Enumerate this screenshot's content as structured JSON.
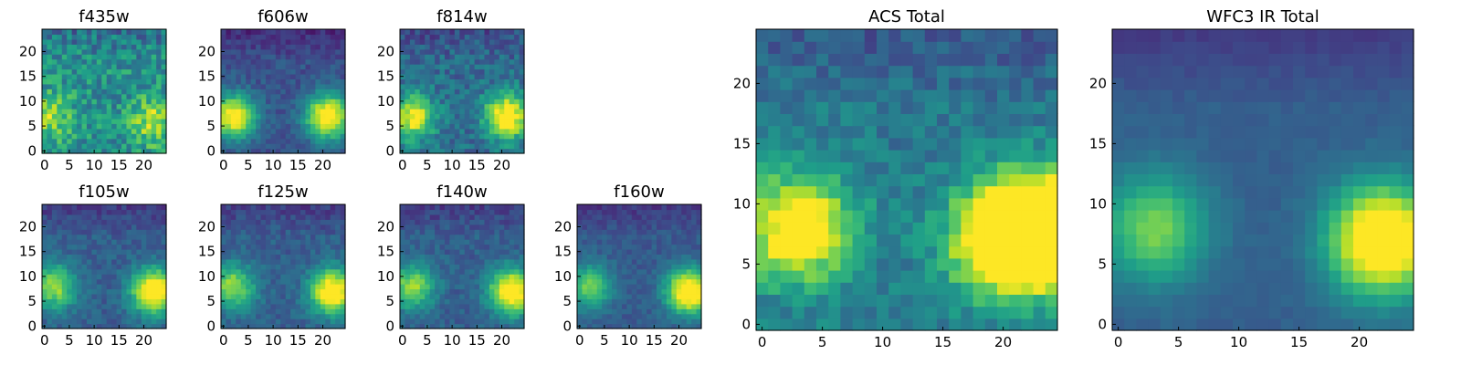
{
  "figure": {
    "description_colormap": "viridis",
    "grid_size": 25,
    "colormap_stops": [
      "#440154",
      "#482878",
      "#3e4989",
      "#31688e",
      "#26828e",
      "#1f9e89",
      "#35b779",
      "#6ece58",
      "#b5de2b",
      "#fde725"
    ]
  },
  "chart_data": [
    {
      "type": "heatmap",
      "title": "f435w",
      "xticks": [
        0,
        5,
        10,
        15,
        20
      ],
      "yticks": [
        0,
        5,
        10,
        15,
        20
      ],
      "xlim": [
        -0.5,
        24.5
      ],
      "ylim": [
        -0.5,
        24.5
      ],
      "pixel_scale": "fine",
      "sources": [
        {
          "x": 1,
          "y": 7,
          "peak": 0.35
        },
        {
          "x": 22,
          "y": 6,
          "peak": 0.4
        }
      ],
      "background": 0.5,
      "noise": 0.35,
      "notes_visible": "noisy flux map with two bright blobs at left and right near y≈6"
    },
    {
      "type": "heatmap",
      "title": "f606w",
      "xticks": [
        0,
        5,
        10,
        15,
        20
      ],
      "yticks": [
        0,
        5,
        10,
        15,
        20
      ],
      "xlim": [
        -0.5,
        24.5
      ],
      "ylim": [
        -0.5,
        24.5
      ],
      "pixel_scale": "fine",
      "sources": [
        {
          "x": 2,
          "y": 7,
          "peak": 0.8
        },
        {
          "x": 21,
          "y": 7,
          "peak": 0.85
        }
      ],
      "background": 0.25,
      "noise": 0.15
    },
    {
      "type": "heatmap",
      "title": "f814w",
      "xticks": [
        0,
        5,
        10,
        15,
        20
      ],
      "yticks": [
        0,
        5,
        10,
        15,
        20
      ],
      "xlim": [
        -0.5,
        24.5
      ],
      "ylim": [
        -0.5,
        24.5
      ],
      "pixel_scale": "fine",
      "sources": [
        {
          "x": 2,
          "y": 7,
          "peak": 0.65
        },
        {
          "x": 21,
          "y": 7,
          "peak": 0.75
        }
      ],
      "background": 0.35,
      "noise": 0.25
    },
    {
      "type": "heatmap",
      "title": "f105w",
      "xticks": [
        0,
        5,
        10,
        15,
        20
      ],
      "yticks": [
        0,
        5,
        10,
        15,
        20
      ],
      "xlim": [
        -0.5,
        24.5
      ],
      "ylim": [
        -0.5,
        24.5
      ],
      "pixel_scale": "fine",
      "sources": [
        {
          "x": 2,
          "y": 8,
          "peak": 0.55
        },
        {
          "x": 22,
          "y": 7,
          "peak": 0.85
        }
      ],
      "background": 0.3,
      "noise": 0.15
    },
    {
      "type": "heatmap",
      "title": "f125w",
      "xticks": [
        0,
        5,
        10,
        15,
        20
      ],
      "yticks": [
        0,
        5,
        10,
        15,
        20
      ],
      "xlim": [
        -0.5,
        24.5
      ],
      "ylim": [
        -0.5,
        24.5
      ],
      "pixel_scale": "fine",
      "sources": [
        {
          "x": 2,
          "y": 8,
          "peak": 0.55
        },
        {
          "x": 22,
          "y": 7,
          "peak": 0.85
        }
      ],
      "background": 0.3,
      "noise": 0.15
    },
    {
      "type": "heatmap",
      "title": "f140w",
      "xticks": [
        0,
        5,
        10,
        15,
        20
      ],
      "yticks": [
        0,
        5,
        10,
        15,
        20
      ],
      "xlim": [
        -0.5,
        24.5
      ],
      "ylim": [
        -0.5,
        24.5
      ],
      "pixel_scale": "fine",
      "sources": [
        {
          "x": 2,
          "y": 8,
          "peak": 0.55
        },
        {
          "x": 22,
          "y": 7,
          "peak": 0.85
        }
      ],
      "background": 0.3,
      "noise": 0.15
    },
    {
      "type": "heatmap",
      "title": "f160w",
      "xticks": [
        0,
        5,
        10,
        15,
        20
      ],
      "yticks": [
        0,
        5,
        10,
        15,
        20
      ],
      "xlim": [
        -0.5,
        24.5
      ],
      "ylim": [
        -0.5,
        24.5
      ],
      "pixel_scale": "fine",
      "sources": [
        {
          "x": 2,
          "y": 8,
          "peak": 0.5
        },
        {
          "x": 22,
          "y": 7,
          "peak": 0.9
        }
      ],
      "background": 0.28,
      "noise": 0.12
    },
    {
      "type": "heatmap",
      "title": "ACS Total",
      "xticks": [
        0,
        5,
        10,
        15,
        20
      ],
      "yticks": [
        0,
        5,
        10,
        15,
        20
      ],
      "xlim": [
        -0.5,
        24.5
      ],
      "ylim": [
        -0.5,
        24.5
      ],
      "pixel_scale": "coarse",
      "sources": [
        {
          "x": 3,
          "y": 8,
          "peak": 0.75
        },
        {
          "x": 20,
          "y": 7,
          "peak": 0.85
        },
        {
          "x": 24,
          "y": 8,
          "peak": 0.9
        }
      ],
      "background": 0.4,
      "noise": 0.2
    },
    {
      "type": "heatmap",
      "title": "WFC3 IR Total",
      "xticks": [
        0,
        5,
        10,
        15,
        20
      ],
      "yticks": [
        0,
        5,
        10,
        15,
        20
      ],
      "xlim": [
        -0.5,
        24.5
      ],
      "ylim": [
        -0.5,
        24.5
      ],
      "pixel_scale": "coarse",
      "sources": [
        {
          "x": 3,
          "y": 8,
          "peak": 0.5
        },
        {
          "x": 22,
          "y": 7,
          "peak": 0.95
        }
      ],
      "background": 0.3,
      "noise": 0.08
    }
  ]
}
